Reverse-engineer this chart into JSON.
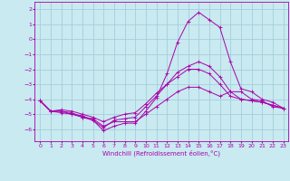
{
  "xlabel": "Windchill (Refroidissement éolien,°C)",
  "bg_color": "#c8eaf0",
  "grid_color": "#a0c8d8",
  "line_color": "#aa00aa",
  "x_ticks": [
    0,
    1,
    2,
    3,
    4,
    5,
    6,
    7,
    8,
    9,
    10,
    11,
    12,
    13,
    14,
    15,
    16,
    17,
    18,
    19,
    20,
    21,
    22,
    23
  ],
  "y_ticks": [
    -6,
    -5,
    -4,
    -3,
    -2,
    -1,
    0,
    1,
    2
  ],
  "ylim": [
    -6.8,
    2.5
  ],
  "xlim": [
    -0.5,
    23.5
  ],
  "line1": [
    -4.1,
    -4.8,
    -4.8,
    -4.9,
    -5.2,
    -5.3,
    -5.8,
    -5.5,
    -5.5,
    -5.5,
    -5.0,
    -4.5,
    -4.0,
    -3.5,
    -3.2,
    -3.2,
    -3.5,
    -3.8,
    -3.5,
    -3.5,
    -4.0,
    -4.1,
    -4.5,
    -4.6
  ],
  "line2": [
    -4.1,
    -4.8,
    -4.9,
    -5.0,
    -5.2,
    -5.4,
    -6.1,
    -5.8,
    -5.6,
    -5.6,
    -4.8,
    -3.9,
    -2.3,
    -0.2,
    1.2,
    1.8,
    1.3,
    0.8,
    -1.5,
    -3.3,
    -3.5,
    -4.0,
    -4.2,
    -4.6
  ],
  "line3": [
    -4.1,
    -4.8,
    -4.8,
    -5.0,
    -5.1,
    -5.4,
    -5.9,
    -5.4,
    -5.3,
    -5.2,
    -4.5,
    -3.8,
    -3.0,
    -2.2,
    -1.8,
    -1.5,
    -1.8,
    -2.5,
    -3.5,
    -4.0,
    -4.1,
    -4.2,
    -4.4,
    -4.6
  ],
  "line4": [
    -4.1,
    -4.8,
    -4.7,
    -4.8,
    -5.0,
    -5.2,
    -5.5,
    -5.2,
    -5.0,
    -4.9,
    -4.3,
    -3.6,
    -3.0,
    -2.5,
    -2.0,
    -2.0,
    -2.3,
    -3.0,
    -3.8,
    -4.0,
    -4.1,
    -4.2,
    -4.4,
    -4.6
  ],
  "figsize": [
    3.2,
    2.0
  ],
  "dpi": 100,
  "tick_fontsize": 4.5,
  "xlabel_fontsize": 5,
  "linewidth": 0.7,
  "markersize": 2.5,
  "markeredgewidth": 0.6
}
